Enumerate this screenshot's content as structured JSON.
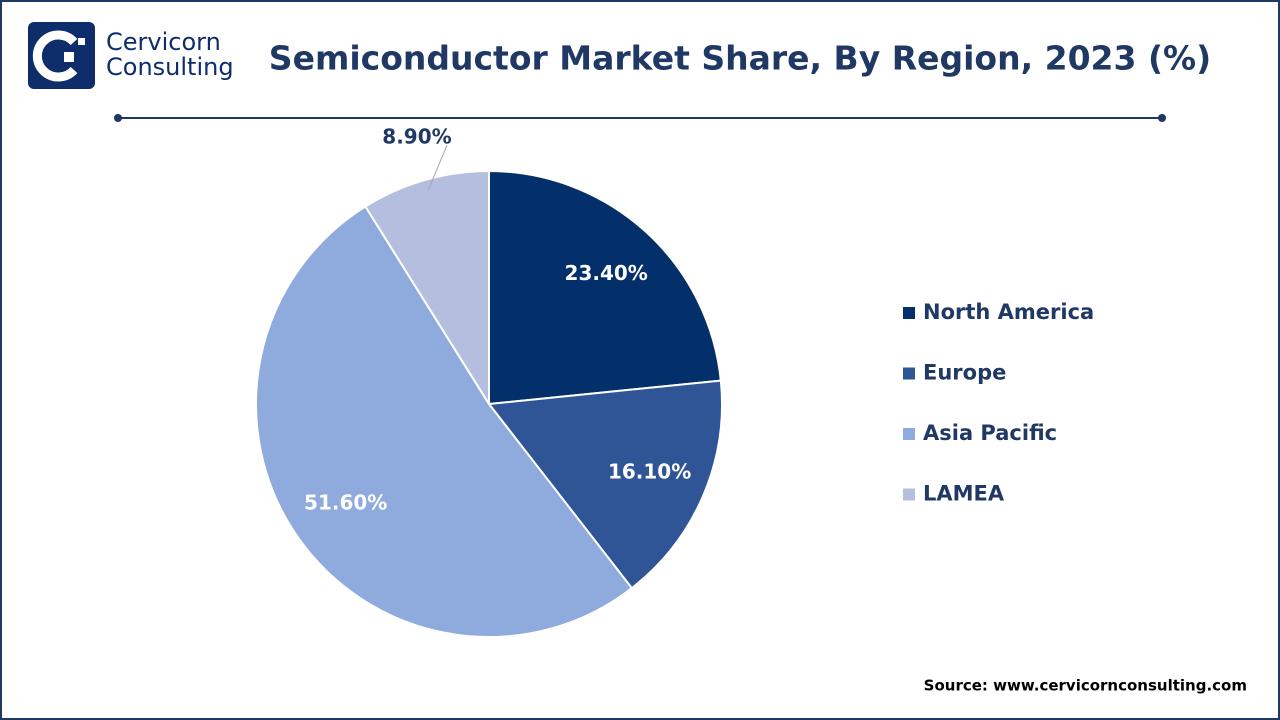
{
  "logo": {
    "line1": "Cervicorn",
    "line2": "Consulting"
  },
  "chart_data": {
    "type": "pie",
    "title": "Semiconductor Market Share, By Region, 2023 (%)",
    "categories": [
      "North America",
      "Europe",
      "Asia Pacific",
      "LAMEA"
    ],
    "values": [
      23.4,
      16.1,
      51.6,
      8.9
    ],
    "value_labels": [
      "23.40%",
      "16.10%",
      "51.60%",
      "8.90%"
    ],
    "colors": [
      "#03306b",
      "#2f5597",
      "#8faadc",
      "#b4bfe0"
    ],
    "legend": "right"
  },
  "source": "Source: www.cervicornconsulting.com"
}
